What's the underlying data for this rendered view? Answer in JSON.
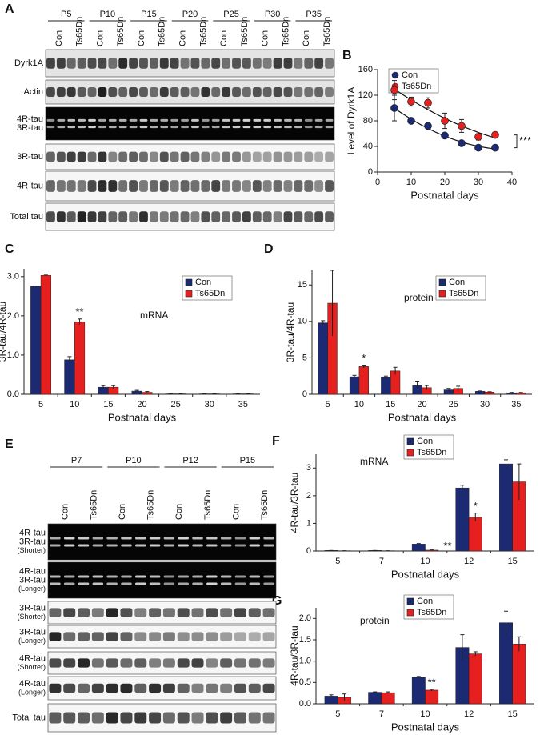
{
  "panel_labels": [
    "A",
    "B",
    "C",
    "D",
    "E",
    "F",
    "G"
  ],
  "blots": [
    {
      "groups": [
        "P5",
        "P10",
        "P15",
        "P20",
        "P25",
        "P30",
        "P35"
      ],
      "lanes": [
        "Con",
        "Ts65Dn"
      ],
      "rows": [
        [
          "Dyrk1A"
        ],
        [
          "Actin"
        ],
        [
          "4R-tau",
          "3R-tau"
        ],
        [
          "3R-tau"
        ],
        [
          "4R-tau"
        ],
        [
          "Total tau"
        ]
      ]
    },
    {
      "groups": [
        "P7",
        "P10",
        "P12",
        "P15"
      ],
      "lanes": [
        "Con",
        "Ts65Dn"
      ],
      "rows": [
        [
          "4R-tau",
          "3R-tau",
          "(Shorter)"
        ],
        [
          "4R-tau",
          "3R-tau",
          "(Longer)"
        ],
        [
          "3R-tau",
          "(Shorter)"
        ],
        [
          "3R-tau",
          "(Longer)"
        ],
        [
          "4R-tau",
          "(Shorter)"
        ],
        [
          "4R-tau",
          "(Longer)"
        ],
        [
          "Total tau"
        ]
      ]
    }
  ],
  "chart_data": [
    {
      "type": "scatter",
      "xlabel": "Postnatal days",
      "ylabel": "Level of Dyrk1A",
      "x": [
        5,
        10,
        15,
        20,
        25,
        30,
        35
      ],
      "series": [
        {
          "name": "Con",
          "color": "#1b2a72",
          "values": [
            100,
            80,
            72,
            57,
            45,
            38,
            38
          ],
          "errors": [
            20,
            3,
            3,
            3,
            3,
            2,
            2
          ]
        },
        {
          "name": "Ts65Dn",
          "color": "#e5201f",
          "values": [
            128,
            110,
            108,
            80,
            72,
            55,
            58
          ],
          "errors": [
            15,
            7,
            8,
            12,
            10,
            5,
            3
          ]
        }
      ],
      "xlim": [
        0,
        40
      ],
      "xticks": [
        0,
        10,
        20,
        30,
        40
      ],
      "ylim": [
        0,
        160
      ],
      "yticks": [
        0,
        40,
        80,
        120,
        160
      ],
      "legend": "upper right",
      "annotations": [
        "***"
      ]
    },
    {
      "type": "bar",
      "xlabel": "Postnatal days",
      "ylabel": "3R-tau/4R-tau",
      "categories": [
        "5",
        "10",
        "15",
        "20",
        "25",
        "30",
        "35"
      ],
      "series": [
        {
          "name": "Con",
          "color": "#1b2a72",
          "values": [
            2.75,
            0.88,
            0.18,
            0.08,
            0.01,
            0.01,
            0.01
          ],
          "errors": [
            0.01,
            0.08,
            0.04,
            0.02,
            0,
            0,
            0
          ]
        },
        {
          "name": "Ts65Dn",
          "color": "#e5201f",
          "values": [
            3.03,
            1.85,
            0.18,
            0.05,
            0.01,
            0.01,
            0.01
          ],
          "errors": [
            0.01,
            0.07,
            0.04,
            0.02,
            0,
            0,
            0
          ]
        }
      ],
      "ylim": [
        0,
        3.2
      ],
      "yticks": [
        {
          "value": 0,
          "label": "0.0"
        },
        {
          "value": 1,
          "label": "1.0"
        },
        {
          "value": 2,
          "label": "2.0"
        },
        {
          "value": 3,
          "label": "3.0"
        }
      ],
      "legend": "upper right",
      "annotations": [
        "mRNA",
        "**"
      ]
    },
    {
      "type": "bar",
      "xlabel": "Postnatal days",
      "ylabel": "3R-tau/4R-tau",
      "categories": [
        "5",
        "10",
        "15",
        "20",
        "25",
        "30",
        "35"
      ],
      "series": [
        {
          "name": "Con",
          "color": "#1b2a72",
          "values": [
            9.8,
            2.4,
            2.3,
            1.2,
            0.6,
            0.4,
            0.2
          ],
          "errors": [
            0.3,
            0.2,
            0.2,
            0.5,
            0.2,
            0.05,
            0.05
          ]
        },
        {
          "name": "Ts65Dn",
          "color": "#e5201f",
          "values": [
            12.5,
            3.8,
            3.2,
            0.9,
            0.8,
            0.3,
            0.2
          ],
          "errors": [
            4.5,
            0.2,
            0.5,
            0.3,
            0.3,
            0.05,
            0.05
          ]
        }
      ],
      "ylim": [
        0,
        17
      ],
      "yticks": [
        0,
        5,
        10,
        15
      ],
      "legend": "upper right",
      "annotations": [
        "protein",
        "*"
      ]
    },
    {
      "type": "bar",
      "xlabel": "Postnatal days",
      "ylabel": "4R-tau/3R-tau",
      "categories": [
        "5",
        "7",
        "10",
        "12",
        "15"
      ],
      "series": [
        {
          "name": "Con",
          "color": "#1b2a72",
          "values": [
            0.02,
            0.02,
            0.25,
            2.28,
            3.15
          ],
          "errors": [
            0,
            0,
            0.02,
            0.1,
            0.15
          ]
        },
        {
          "name": "Ts65Dn",
          "color": "#e5201f",
          "values": [
            0.01,
            0.01,
            0.03,
            1.22,
            2.5
          ],
          "errors": [
            0,
            0,
            0.01,
            0.15,
            0.65
          ]
        }
      ],
      "ylim": [
        0,
        3.5
      ],
      "yticks": [
        0,
        1,
        2,
        3
      ],
      "legend": "upper right",
      "annotations": [
        "mRNA",
        "**",
        "*"
      ]
    },
    {
      "type": "bar",
      "xlabel": "Postnatal days",
      "ylabel": "4R-tau/3R-tau",
      "categories": [
        "5",
        "7",
        "10",
        "12",
        "15"
      ],
      "series": [
        {
          "name": "Con",
          "color": "#1b2a72",
          "values": [
            0.18,
            0.27,
            0.62,
            1.32,
            1.9
          ],
          "errors": [
            0.03,
            0.01,
            0.02,
            0.3,
            0.27
          ]
        },
        {
          "name": "Ts65Dn",
          "color": "#e5201f",
          "values": [
            0.15,
            0.26,
            0.32,
            1.17,
            1.4
          ],
          "errors": [
            0.08,
            0.02,
            0.02,
            0.05,
            0.17
          ]
        }
      ],
      "ylim": [
        0,
        2.25
      ],
      "yticks": [
        {
          "value": 0,
          "label": "0.0"
        },
        {
          "value": 0.5,
          "label": "0.5"
        },
        {
          "value": 1,
          "label": "1.0"
        },
        {
          "value": 1.5,
          "label": "1.5"
        },
        {
          "value": 2,
          "label": "2.0"
        }
      ],
      "legend": "upper right",
      "annotations": [
        "protein",
        "**"
      ]
    }
  ]
}
